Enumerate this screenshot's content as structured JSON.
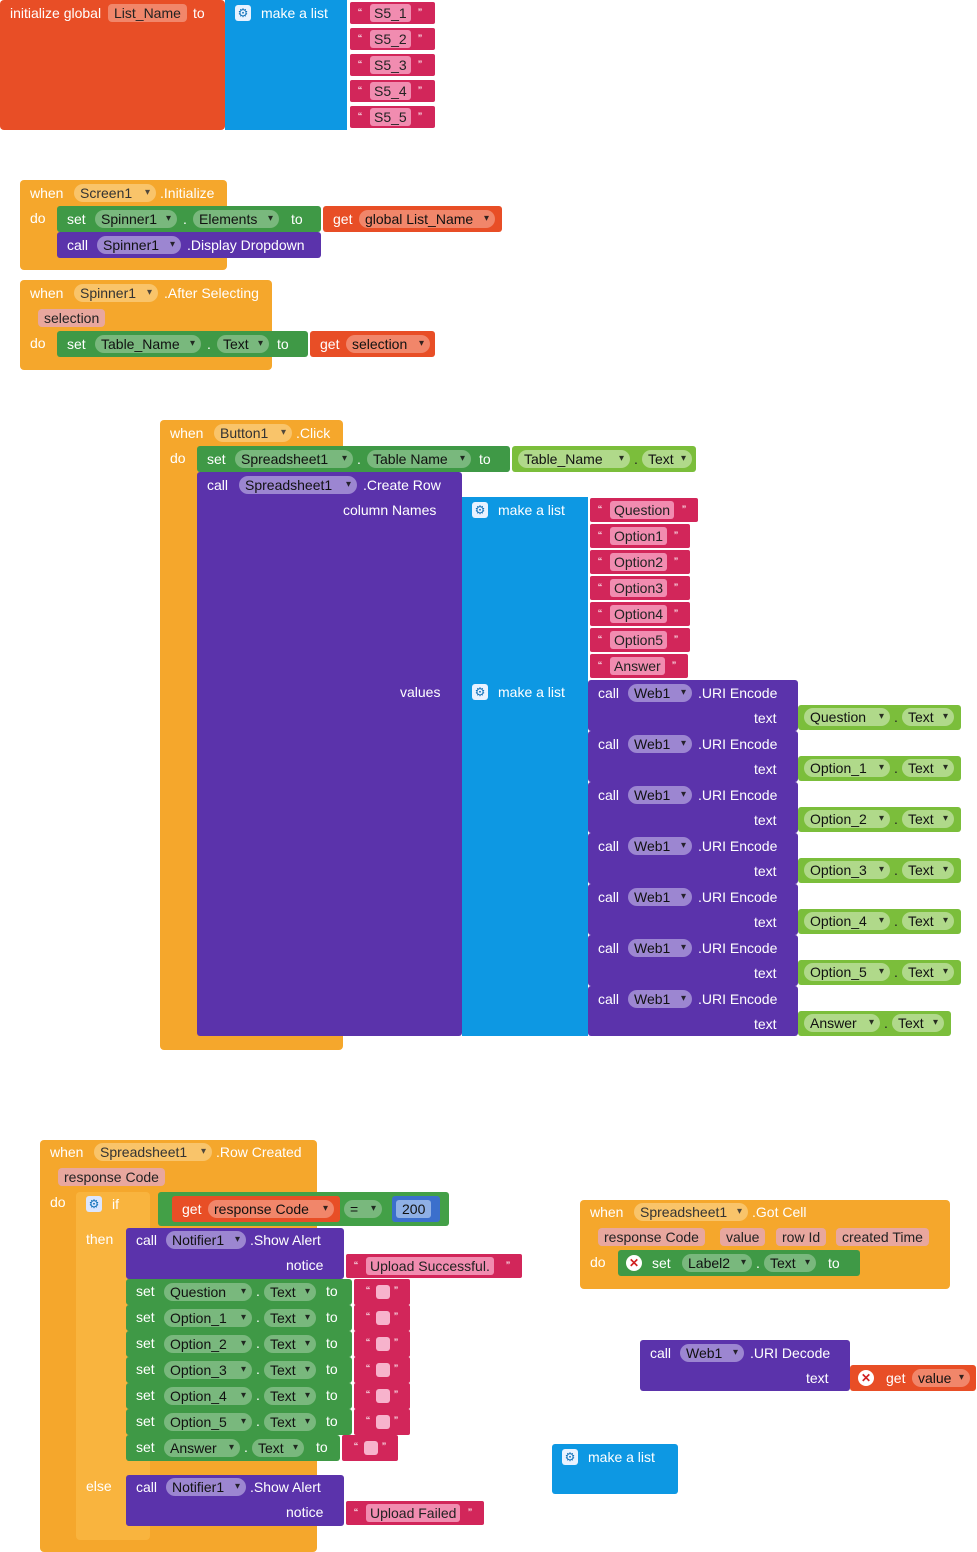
{
  "global_init": {
    "kw": "initialize global",
    "name": "List_Name",
    "to": "to",
    "make_list": "make a list",
    "items": [
      "S5_1",
      "S5_2",
      "S5_3",
      "S5_4",
      "S5_5"
    ]
  },
  "screen_init": {
    "when": "when",
    "component": "Screen1",
    "event": ".Initialize",
    "do": "do",
    "set": "set",
    "spinner": "Spinner1",
    "prop": "Elements",
    "to": "to",
    "get": "get",
    "var": "global List_Name",
    "call": "call",
    "method": ".Display Dropdown"
  },
  "spinner_after": {
    "when": "when",
    "component": "Spinner1",
    "event": ".After Selecting",
    "param": "selection",
    "do": "do",
    "set": "set",
    "target": "Table_Name",
    "prop": "Text",
    "to": "to",
    "get": "get",
    "var": "selection"
  },
  "button_click": {
    "when": "when",
    "component": "Button1",
    "event": ".Click",
    "do": "do",
    "set": "set",
    "ss": "Spreadsheet1",
    "prop": "Table Name",
    "to": "to",
    "src": "Table_Name",
    "src_prop": "Text",
    "call": "call",
    "method": ".Create Row",
    "col_label": "column Names",
    "values_label": "values",
    "make_list": "make a list",
    "columns": [
      "Question",
      "Option1",
      "Option2",
      "Option3",
      "Option4",
      "Option5",
      "Answer"
    ],
    "uri_call": "call",
    "web": "Web1",
    "uri_method": ".URI Encode",
    "text_label": "text",
    "values": [
      "Question",
      "Option_1",
      "Option_2",
      "Option_3",
      "Option_4",
      "Option_5",
      "Answer"
    ],
    "value_prop": "Text"
  },
  "row_created": {
    "when": "when",
    "component": "Spreadsheet1",
    "event": ".Row Created",
    "param": "response Code",
    "do": "do",
    "if": "if",
    "then": "then",
    "else": "else",
    "get": "get",
    "var": "response Code",
    "op": "=",
    "num": "200",
    "call": "call",
    "notifier": "Notifier1",
    "method": ".Show Alert",
    "notice": "notice",
    "success": "Upload Successful.",
    "failed": "Upload Failed",
    "set": "set",
    "to": "to",
    "prop": "Text",
    "targets": [
      "Question",
      "Option_1",
      "Option_2",
      "Option_3",
      "Option_4",
      "Option_5",
      "Answer"
    ]
  },
  "got_cell": {
    "when": "when",
    "component": "Spreadsheet1",
    "event": ".Got Cell",
    "params": [
      "response Code",
      "value",
      "row Id",
      "created Time"
    ],
    "do": "do",
    "set": "set",
    "target": "Label2",
    "prop": "Text",
    "to": "to"
  },
  "uri_decode": {
    "call": "call",
    "web": "Web1",
    "method": ".URI Decode",
    "text": "text",
    "get": "get",
    "var": "value"
  },
  "loose_list": {
    "label": "make a list"
  },
  "colors": {
    "event": "#f5a72c",
    "setter": "#3f9946",
    "method": "#5b33ab",
    "variable": "#e84e26",
    "text": "#d2265a",
    "list": "#0d98e3",
    "component": "#7bbe3b"
  }
}
